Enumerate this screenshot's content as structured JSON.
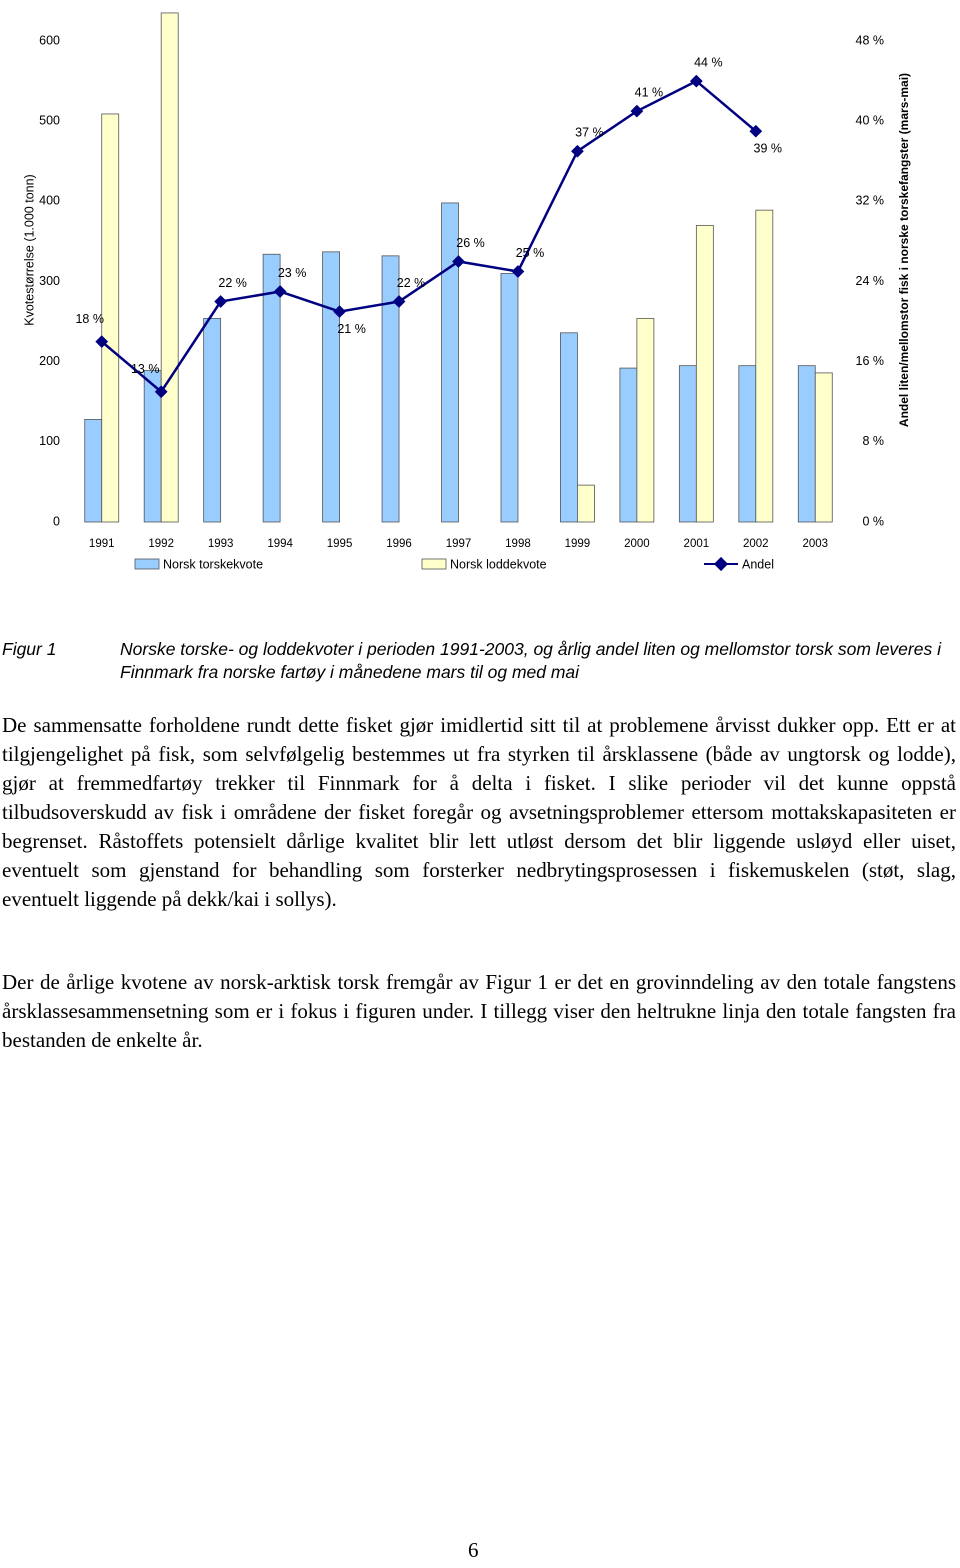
{
  "chart_data": {
    "type": "bar-line",
    "ylabel": "Kvotestørrelse (1.000 tonn)",
    "y2label": "Andel liten/mellomstor fisk i norske torskefangster (mars-mai)",
    "categories": [
      "1991",
      "1992",
      "1993",
      "1994",
      "1995",
      "1996",
      "1997",
      "1998",
      "1999",
      "2000",
      "2001",
      "2002",
      "2003"
    ],
    "series": [
      {
        "name": "Norsk torskekvote",
        "type": "bar",
        "color": "#99ccff",
        "values": [
          128,
          189,
          254,
          334,
          337,
          332,
          398,
          310,
          236,
          192,
          195,
          195,
          195
        ]
      },
      {
        "name": "Norsk loddekvote",
        "type": "bar",
        "color": "#ffffcc",
        "values": [
          509,
          635,
          null,
          null,
          null,
          null,
          null,
          null,
          46,
          254,
          370,
          389,
          186
        ]
      },
      {
        "name": "Andel",
        "type": "line",
        "axis": "y2",
        "color": "#000080",
        "values": [
          18,
          13,
          22,
          23,
          21,
          22,
          26,
          25,
          37,
          41,
          44,
          39,
          null
        ],
        "value_labels": [
          "18 %",
          "13 %",
          "22 %",
          "23 %",
          "21 %",
          "22 %",
          "26 %",
          "25 %",
          "37 %",
          "41 %",
          "44 %",
          "39 %",
          null
        ]
      }
    ],
    "ylim": [
      0,
      600
    ],
    "yticks": [
      0,
      100,
      200,
      300,
      400,
      500,
      600
    ],
    "y2lim": [
      0,
      48
    ],
    "y2ticks": [
      {
        "value": 0,
        "label": "0 %"
      },
      {
        "value": 8,
        "label": "8 %"
      },
      {
        "value": 16,
        "label": "16 %"
      },
      {
        "value": 24,
        "label": "24 %"
      },
      {
        "value": 32,
        "label": "32 %"
      },
      {
        "value": 40,
        "label": "40 %"
      },
      {
        "value": 48,
        "label": "48 %"
      }
    ],
    "grid": false,
    "legend": "bottom"
  },
  "caption": {
    "label": "Figur 1",
    "text": "Norske torske- og loddekvoter i perioden 1991-2003, og årlig andel liten og mellomstor torsk som leveres i Finnmark fra norske fartøy i månedene mars til og med mai"
  },
  "paragraphs": [
    "De sammensatte forholdene rundt dette fisket gjør imidlertid sitt til at problemene årvisst dukker opp. Ett er at tilgjengelighet på fisk, som selvfølgelig bestemmes ut fra styrken til årsklassene (både av ungtorsk og lodde), gjør at fremmedfartøy trekker til Finnmark for å delta i fisket. I slike perioder vil det kunne oppstå tilbudsoverskudd av fisk i områdene der fisket foregår og avsetningsproblemer ettersom mottakskapasiteten er begrenset. Råstoffets potensielt dårlige kvalitet blir lett utløst dersom det blir liggende usløyd eller uiset, eventuelt som gjenstand for behandling som forsterker nedbrytingsprosessen i fiskemuskelen (støt, slag, eventuelt liggende på dekk/kai i sollys).",
    "Der de årlige kvotene av norsk-arktisk torsk fremgår av Figur 1 er det en grovinndeling av den totale fangstens årsklassesammensetning som er i fokus i figuren under. I tillegg viser den heltrukne linja den totale fangsten fra bestanden de enkelte år."
  ],
  "page_number": "6"
}
